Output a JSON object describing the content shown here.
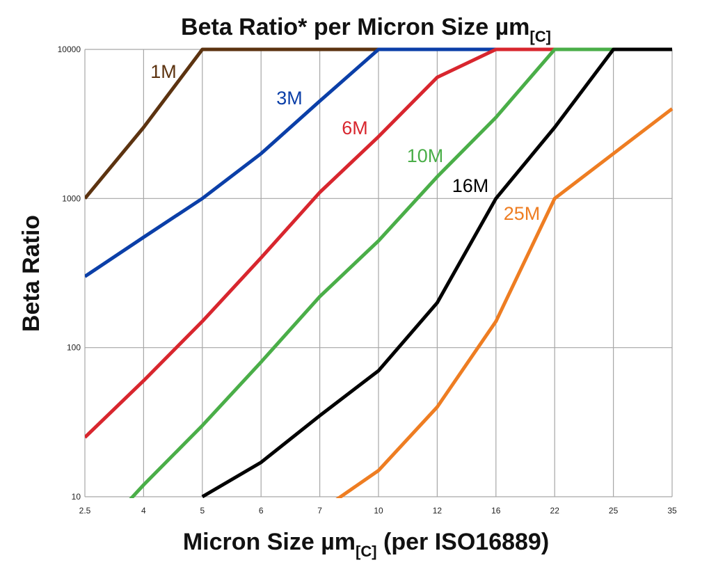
{
  "chart_data": {
    "type": "line",
    "title": "Beta Ratio* per Micron Size µm",
    "title_subscript": "[C]",
    "xlabel": "Micron Size µm",
    "xlabel_subscript": "[C]",
    "xlabel_suffix": " (per ISO16889)",
    "ylabel": "Beta Ratio",
    "y_scale": "log",
    "ylim": [
      10,
      10000
    ],
    "y_ticks": [
      "10",
      "100",
      "1000",
      "10000"
    ],
    "grid": true,
    "categories": [
      "2.5",
      "4",
      "5",
      "6",
      "7",
      "10",
      "12",
      "16",
      "22",
      "25",
      "35"
    ],
    "series": [
      {
        "name": "1M",
        "color": "#5c3310",
        "values": [
          1000,
          3000,
          10000,
          10000,
          10000,
          10000,
          10000,
          10000,
          10000,
          10000,
          10000
        ]
      },
      {
        "name": "3M",
        "color": "#0b3fa8",
        "values": [
          300,
          550,
          1000,
          2000,
          4500,
          10000,
          10000,
          10000,
          10000,
          10000,
          10000
        ]
      },
      {
        "name": "6M",
        "color": "#d8262e",
        "values": [
          25,
          60,
          150,
          400,
          1100,
          2600,
          6500,
          10000,
          10000,
          10000,
          10000
        ]
      },
      {
        "name": "10M",
        "color": "#4aae48",
        "values": [
          4.5,
          12,
          30,
          80,
          220,
          520,
          1400,
          3500,
          10000,
          10000,
          10000
        ]
      },
      {
        "name": "16M",
        "color": "#000000",
        "values": [
          null,
          null,
          10,
          17,
          35,
          70,
          200,
          1000,
          3000,
          10000,
          10000
        ]
      },
      {
        "name": "25M",
        "color": "#ee7d22",
        "values": [
          null,
          null,
          null,
          null,
          8,
          15,
          40,
          150,
          1000,
          2000,
          4000
        ]
      }
    ]
  }
}
